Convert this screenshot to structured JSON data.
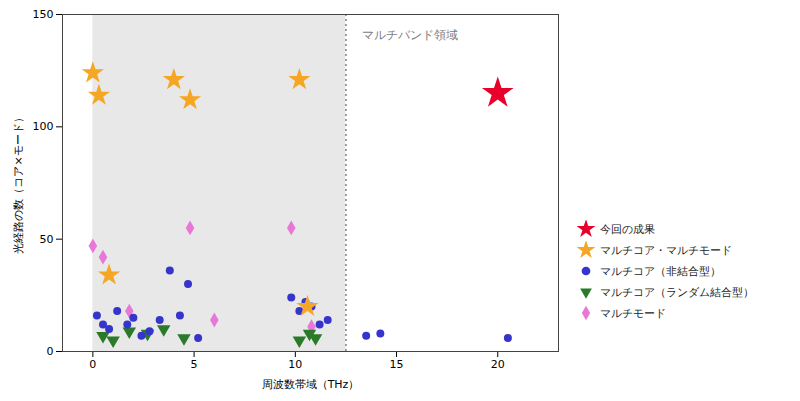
{
  "chart_data": {
    "type": "scatter",
    "xlabel": "周波数帯域（THz）",
    "ylabel": "光経路の数（コア×モード）",
    "xlim": [
      -1.5,
      23
    ],
    "ylim": [
      0,
      150
    ],
    "xticks": [
      0,
      5,
      10,
      15,
      20
    ],
    "yticks": [
      0,
      50,
      100,
      150
    ],
    "grid": false,
    "legend": "right",
    "annotations": [
      {
        "text": "マルチバンド領域",
        "x": 13.3,
        "y": 143,
        "color": "gray"
      }
    ],
    "shaded_region": {
      "x": [
        0,
        12.5
      ],
      "color": "#e8e8e8"
    },
    "vline": {
      "x": 12.5,
      "color": "gray",
      "line_style": "dotted"
    },
    "series": [
      {
        "name": "今回の成果",
        "color": "#e8002a",
        "marker": "star",
        "x": [
          20.0
        ],
        "values": [
          115
        ]
      },
      {
        "name": "マルチコア・マルチモード",
        "color": "#f5a623",
        "marker": "star",
        "x": [
          0.0,
          0.3,
          0.8,
          4.0,
          4.8,
          10.2,
          10.6
        ],
        "values": [
          124,
          114,
          34,
          121,
          112,
          121,
          20
        ]
      },
      {
        "name": "マルチコア（非結合型）",
        "color": "#3535cc",
        "marker": "circle",
        "x": [
          0.2,
          0.5,
          0.8,
          1.2,
          1.7,
          2.0,
          2.4,
          2.8,
          3.3,
          3.8,
          4.3,
          4.7,
          5.2,
          9.8,
          10.2,
          10.5,
          10.8,
          11.2,
          11.6,
          13.5,
          14.2,
          20.5
        ],
        "values": [
          16,
          12,
          10,
          18,
          12,
          15,
          7,
          9,
          14,
          36,
          16,
          30,
          6,
          24,
          18,
          22,
          20,
          12,
          14,
          7,
          8,
          6
        ]
      },
      {
        "name": "マルチコア（ランダム結合型）",
        "color": "#2a7a2a",
        "marker": "triangle-down",
        "x": [
          0.5,
          1.0,
          1.8,
          2.7,
          3.5,
          4.5,
          10.2,
          10.7,
          11.0
        ],
        "values": [
          7,
          5,
          9,
          8,
          10,
          6,
          5,
          8,
          6
        ]
      },
      {
        "name": "マルチモード",
        "color": "#e878d8",
        "marker": "diamond",
        "x": [
          0.0,
          0.5,
          1.8,
          4.8,
          6.0,
          9.8,
          10.8
        ],
        "values": [
          47,
          42,
          18,
          55,
          14,
          55,
          11
        ]
      }
    ]
  }
}
